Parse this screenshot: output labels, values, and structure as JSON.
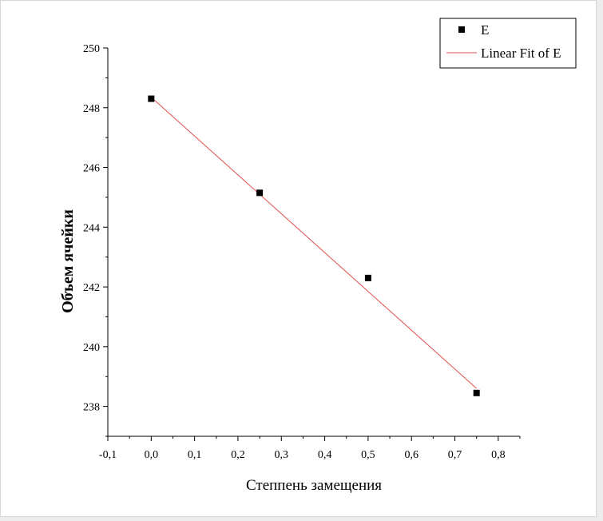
{
  "chart_data": {
    "type": "scatter",
    "title": "",
    "xlabel": "Степпень замещения",
    "ylabel": "Объем ячейки",
    "xlim": [
      -0.1,
      0.85
    ],
    "ylim": [
      237,
      250
    ],
    "xticks": [
      "-0,1",
      "0,0",
      "0,1",
      "0,2",
      "0,3",
      "0,4",
      "0,5",
      "0,6",
      "0,7",
      "0,8"
    ],
    "xtick_values": [
      -0.1,
      0,
      0.1,
      0.2,
      0.3,
      0.4,
      0.5,
      0.6,
      0.7,
      0.8
    ],
    "yticks": [
      "238",
      "240",
      "242",
      "244",
      "246",
      "248",
      "250"
    ],
    "ytick_values": [
      238,
      240,
      242,
      244,
      246,
      248,
      250
    ],
    "grid": false,
    "legend_position": "top-right",
    "series": [
      {
        "name": "E",
        "kind": "scatter",
        "color": "#000000",
        "marker": "square",
        "x": [
          0,
          0.25,
          0.5,
          0.75
        ],
        "y": [
          248.3,
          245.15,
          242.3,
          238.45
        ]
      },
      {
        "name": "Linear Fit of E",
        "kind": "line",
        "color": "#e05050",
        "x": [
          0,
          0.75
        ],
        "y": [
          248.35,
          238.6
        ]
      }
    ]
  }
}
